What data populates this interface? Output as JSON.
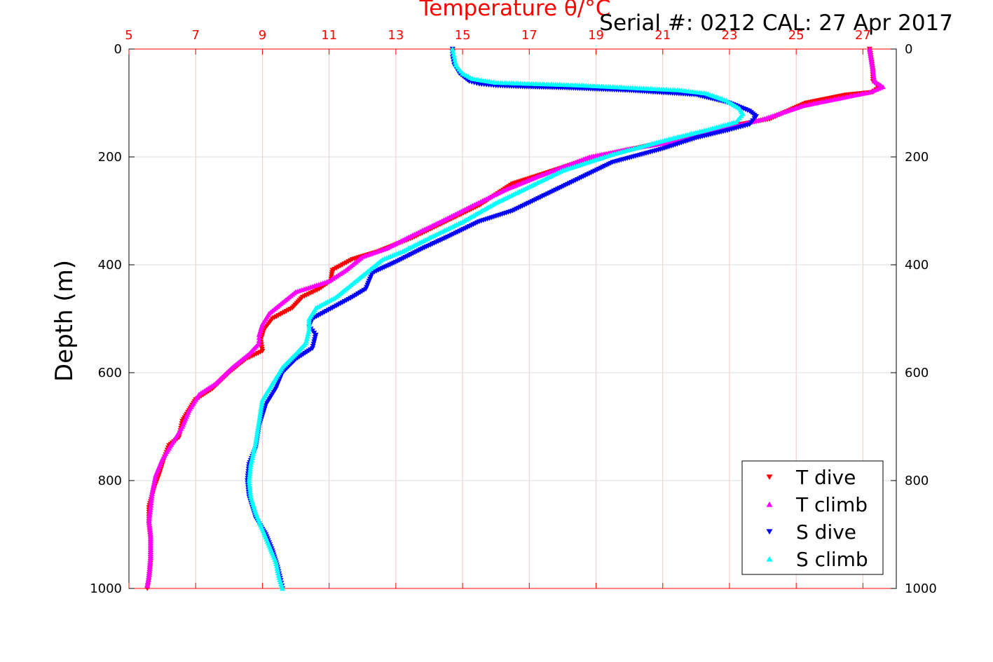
{
  "chart_data": {
    "type": "scatter",
    "title": "Temperature θ/°C",
    "title_color": "#ff0000",
    "annotation": "Serial #: 0212  CAL: 27 Apr 2017",
    "ylabel": "Depth (m)",
    "x_axis_position": "top",
    "x_axis_color": "#ff0000",
    "xlim": [
      5,
      28
    ],
    "xticks": [
      "5",
      "7",
      "9",
      "11",
      "13",
      "15",
      "17",
      "19",
      "21",
      "23",
      "25",
      "27"
    ],
    "ylim": [
      0,
      1000
    ],
    "y_reversed": true,
    "yticks": [
      "0",
      "200",
      "400",
      "600",
      "800",
      "1000"
    ],
    "grid": true,
    "legend_position": "bottom-right",
    "series": [
      {
        "name": "T dive",
        "marker": "triangle-down",
        "color": "#ff0000",
        "points": [
          [
            27.2,
            0
          ],
          [
            27.25,
            20
          ],
          [
            27.3,
            40
          ],
          [
            27.3,
            60
          ],
          [
            27.5,
            70
          ],
          [
            27.3,
            80
          ],
          [
            26.5,
            85
          ],
          [
            25.3,
            100
          ],
          [
            24.2,
            130
          ],
          [
            23.3,
            140
          ],
          [
            22,
            160
          ],
          [
            20.5,
            180
          ],
          [
            19,
            200
          ],
          [
            17.5,
            230
          ],
          [
            16.5,
            250
          ],
          [
            15.5,
            290
          ],
          [
            14.5,
            320
          ],
          [
            13.5,
            350
          ],
          [
            12.5,
            375
          ],
          [
            11.7,
            390
          ],
          [
            11.1,
            410
          ],
          [
            11.05,
            430
          ],
          [
            10.7,
            445
          ],
          [
            10.2,
            460
          ],
          [
            9.9,
            480
          ],
          [
            9.3,
            500
          ],
          [
            9.05,
            520
          ],
          [
            8.95,
            540
          ],
          [
            9.0,
            560
          ],
          [
            8.5,
            575
          ],
          [
            8.0,
            600
          ],
          [
            7.5,
            630
          ],
          [
            7.0,
            650
          ],
          [
            6.6,
            690
          ],
          [
            6.5,
            720
          ],
          [
            6.2,
            735
          ],
          [
            6.05,
            760
          ],
          [
            5.9,
            790
          ],
          [
            5.75,
            815
          ],
          [
            5.6,
            850
          ],
          [
            5.6,
            880
          ],
          [
            5.65,
            910
          ],
          [
            5.65,
            950
          ],
          [
            5.6,
            985
          ],
          [
            5.55,
            1000
          ]
        ]
      },
      {
        "name": "T climb",
        "marker": "triangle-up",
        "color": "#ff00ff",
        "points": [
          [
            27.2,
            0
          ],
          [
            27.25,
            20
          ],
          [
            27.3,
            40
          ],
          [
            27.35,
            60
          ],
          [
            27.6,
            70
          ],
          [
            27.2,
            80
          ],
          [
            26.4,
            90
          ],
          [
            25.2,
            105
          ],
          [
            24.0,
            130
          ],
          [
            23.0,
            145
          ],
          [
            21.5,
            170
          ],
          [
            20.0,
            185
          ],
          [
            18.8,
            200
          ],
          [
            17.3,
            235
          ],
          [
            16.3,
            260
          ],
          [
            15.3,
            290
          ],
          [
            14.5,
            315
          ],
          [
            13.5,
            345
          ],
          [
            12.7,
            370
          ],
          [
            12.0,
            385
          ],
          [
            11.5,
            410
          ],
          [
            11.0,
            430
          ],
          [
            10.5,
            440
          ],
          [
            10.0,
            450
          ],
          [
            9.6,
            470
          ],
          [
            9.2,
            490
          ],
          [
            9.0,
            510
          ],
          [
            8.9,
            530
          ],
          [
            8.9,
            545
          ],
          [
            8.6,
            565
          ],
          [
            8.1,
            590
          ],
          [
            7.6,
            620
          ],
          [
            7.1,
            640
          ],
          [
            6.8,
            670
          ],
          [
            6.6,
            700
          ],
          [
            6.3,
            730
          ],
          [
            6.0,
            760
          ],
          [
            5.8,
            790
          ],
          [
            5.7,
            820
          ],
          [
            5.65,
            850
          ],
          [
            5.6,
            875
          ],
          [
            5.65,
            900
          ],
          [
            5.65,
            940
          ],
          [
            5.6,
            975
          ],
          [
            5.55,
            995
          ]
        ]
      },
      {
        "name": "S dive",
        "marker": "triangle-down",
        "color": "#0000ff",
        "points": [
          [
            14.7,
            0
          ],
          [
            14.7,
            15
          ],
          [
            14.75,
            30
          ],
          [
            14.9,
            45
          ],
          [
            15.2,
            60
          ],
          [
            15.5,
            65
          ],
          [
            16.0,
            68
          ],
          [
            16.8,
            70
          ],
          [
            18.0,
            72
          ],
          [
            20.0,
            77
          ],
          [
            22.0,
            85
          ],
          [
            23.0,
            100
          ],
          [
            23.6,
            115
          ],
          [
            23.8,
            125
          ],
          [
            23.6,
            140
          ],
          [
            23.0,
            150
          ],
          [
            22.0,
            165
          ],
          [
            21.0,
            185
          ],
          [
            19.5,
            210
          ],
          [
            18.5,
            240
          ],
          [
            17.5,
            270
          ],
          [
            16.5,
            300
          ],
          [
            15.5,
            320
          ],
          [
            14.5,
            350
          ],
          [
            13.8,
            370
          ],
          [
            13.0,
            395
          ],
          [
            12.3,
            415
          ],
          [
            12.2,
            430
          ],
          [
            12.1,
            445
          ],
          [
            11.7,
            460
          ],
          [
            11.1,
            480
          ],
          [
            10.5,
            500
          ],
          [
            10.4,
            515
          ],
          [
            10.6,
            530
          ],
          [
            10.5,
            555
          ],
          [
            10.0,
            575
          ],
          [
            9.6,
            600
          ],
          [
            9.4,
            630
          ],
          [
            9.1,
            660
          ],
          [
            8.9,
            700
          ],
          [
            8.8,
            740
          ],
          [
            8.6,
            770
          ],
          [
            8.55,
            800
          ],
          [
            8.6,
            830
          ],
          [
            8.8,
            870
          ],
          [
            9.1,
            900
          ],
          [
            9.3,
            930
          ],
          [
            9.45,
            960
          ],
          [
            9.55,
            985
          ],
          [
            9.6,
            1000
          ]
        ]
      },
      {
        "name": "S climb",
        "marker": "triangle-up",
        "color": "#00ffff",
        "points": [
          [
            14.7,
            0
          ],
          [
            14.75,
            15
          ],
          [
            14.8,
            30
          ],
          [
            15.0,
            45
          ],
          [
            15.3,
            55
          ],
          [
            16.0,
            62
          ],
          [
            17.0,
            64
          ],
          [
            18.5,
            67
          ],
          [
            19.5,
            70
          ],
          [
            20.5,
            73
          ],
          [
            21.5,
            76
          ],
          [
            22.3,
            82
          ],
          [
            22.9,
            95
          ],
          [
            23.3,
            110
          ],
          [
            23.4,
            120
          ],
          [
            23.2,
            135
          ],
          [
            22.3,
            150
          ],
          [
            21.0,
            170
          ],
          [
            19.5,
            195
          ],
          [
            18.0,
            225
          ],
          [
            17.0,
            255
          ],
          [
            16.0,
            285
          ],
          [
            15.0,
            320
          ],
          [
            14.0,
            350
          ],
          [
            13.2,
            375
          ],
          [
            12.6,
            390
          ],
          [
            12.2,
            410
          ],
          [
            11.8,
            430
          ],
          [
            11.2,
            460
          ],
          [
            10.6,
            480
          ],
          [
            10.4,
            500
          ],
          [
            10.4,
            520
          ],
          [
            10.3,
            545
          ],
          [
            10.0,
            565
          ],
          [
            9.6,
            590
          ],
          [
            9.3,
            620
          ],
          [
            9.0,
            650
          ],
          [
            8.9,
            690
          ],
          [
            8.8,
            730
          ],
          [
            8.65,
            770
          ],
          [
            8.6,
            800
          ],
          [
            8.65,
            830
          ],
          [
            8.8,
            860
          ],
          [
            9.0,
            890
          ],
          [
            9.2,
            920
          ],
          [
            9.4,
            950
          ],
          [
            9.5,
            980
          ],
          [
            9.6,
            1000
          ]
        ]
      }
    ]
  }
}
